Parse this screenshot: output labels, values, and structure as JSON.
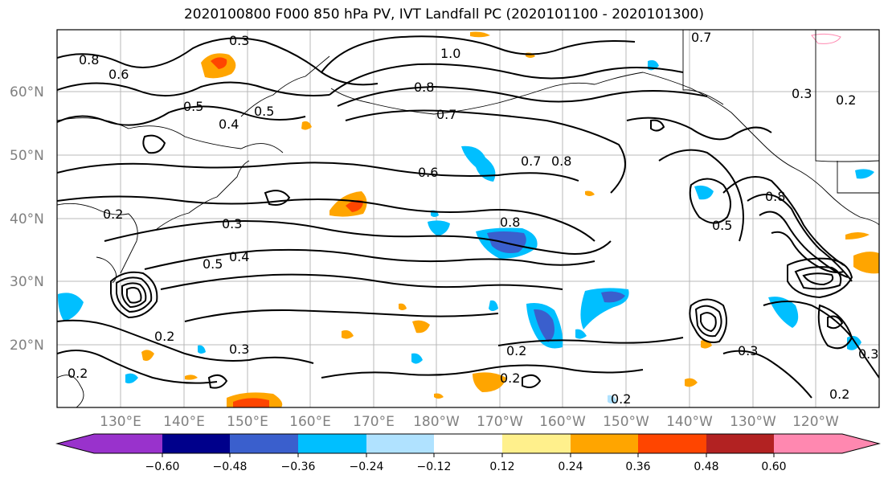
{
  "title": "2020100800 F000 850 hPa PV, IVT Landfall PC (2020101100 - 2020101300)",
  "map": {
    "lat_labels": [
      "60°N",
      "50°N",
      "40°N",
      "30°N",
      "20°N"
    ],
    "lon_labels": [
      "130°E",
      "140°E",
      "150°E",
      "160°E",
      "170°E",
      "180°W",
      "170°W",
      "160°W",
      "150°W",
      "140°W",
      "130°W",
      "120°W"
    ],
    "contour_labels": [
      "0.8",
      "0.6",
      "0.3",
      "0.5",
      "0.4",
      "0.5",
      "1.0",
      "0.8",
      "0.7",
      "0.6",
      "0.7",
      "0.8",
      "0.3",
      "0.8",
      "0.5",
      "0.4",
      "0.3",
      "0.2",
      "0.2",
      "0.3",
      "0.2",
      "0.2",
      "0.2",
      "0.3",
      "0.2",
      "0.5",
      "0.8",
      "0.7",
      "0.2",
      "0.3",
      "0.2"
    ]
  },
  "colorbar": {
    "ticks": [
      "−0.60",
      "−0.48",
      "−0.36",
      "−0.24",
      "−0.12",
      "0.12",
      "0.24",
      "0.36",
      "0.48",
      "0.60"
    ],
    "colors": [
      "#9932cc",
      "#00008b",
      "#3a5fcd",
      "#00bfff",
      "#b0e2ff",
      "#ffffff",
      "#fff08c",
      "#ffa500",
      "#ff4500",
      "#b22222",
      "#ff88b0"
    ]
  }
}
